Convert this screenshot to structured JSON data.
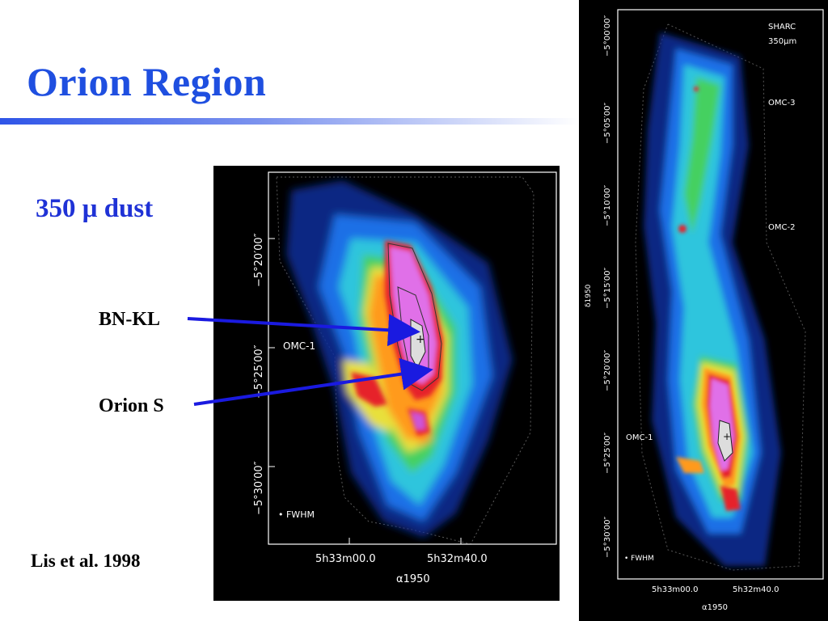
{
  "slide": {
    "title": "Orion Region",
    "dust_label": "350 μ dust",
    "bnkl_label": "BN-KL",
    "orions_label": "Orion S",
    "citation": "Lis et al. 1998"
  },
  "main_map": {
    "region_label": "OMC-1",
    "fwhm_label": "• FWHM",
    "y_ticks": [
      "−5°20′00″",
      "−5°25′00″",
      "−5°30′00″"
    ],
    "x_tick_1": "5h33m00.0",
    "x_tick_2": "5h32m40.0",
    "x_axis_label": "α1950"
  },
  "strip_map": {
    "instrument": "SHARC",
    "wavelength": "350μm",
    "labels": [
      "OMC-3",
      "OMC-2",
      "OMC-1"
    ],
    "fwhm_label": "• FWHM",
    "y_axis_label": "δ1950",
    "y_ticks": [
      "−5°00′00″",
      "−5°05′00″",
      "−5°10′00″",
      "−5°15′00″",
      "−5°20′00″",
      "−5°25′00″",
      "−5°30′00″"
    ],
    "x_tick_1": "5h33m00.0",
    "x_tick_2": "5h32m40.0",
    "x_axis_label": "α1950"
  },
  "colors": {
    "title": "#1f4fe0",
    "dust_label": "#1f32d6",
    "arrow": "#1a1ae0",
    "background_panel": "#000000"
  }
}
